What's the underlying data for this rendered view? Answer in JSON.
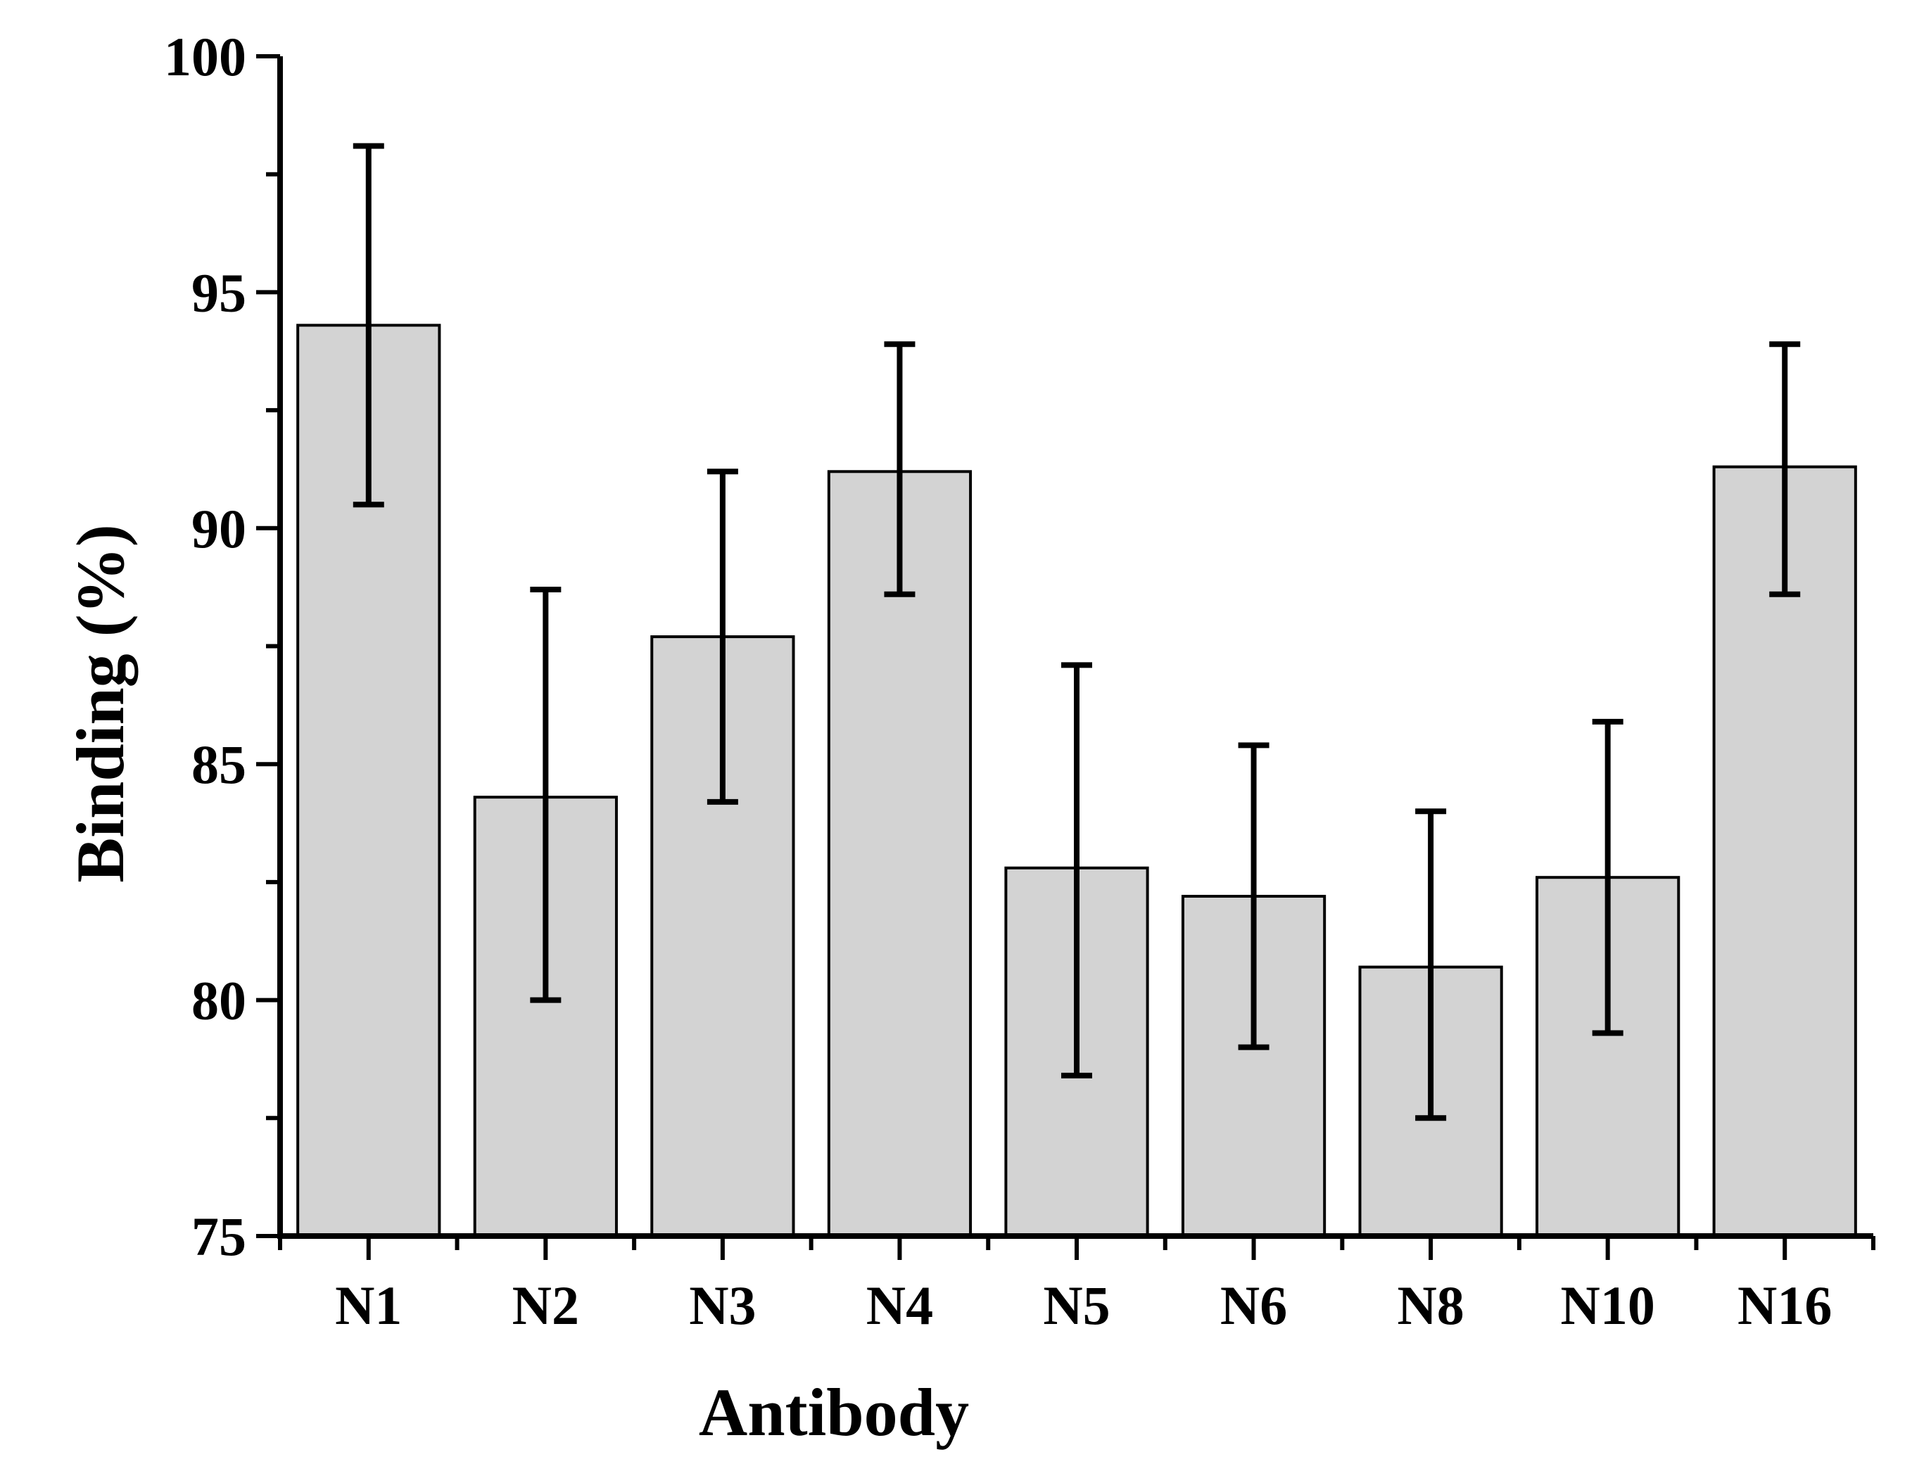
{
  "chart_data": {
    "type": "bar",
    "title": "",
    "xlabel": "Antibody",
    "ylabel": "Binding (%)",
    "categories": [
      "N1",
      "N2",
      "N3",
      "N4",
      "N5",
      "N6",
      "N8",
      "N10",
      "N16"
    ],
    "values": [
      94.3,
      84.3,
      87.7,
      91.2,
      82.8,
      82.2,
      80.7,
      82.6,
      91.3
    ],
    "error_low": [
      90.5,
      80.0,
      84.2,
      88.6,
      78.4,
      79.0,
      77.5,
      79.3,
      88.6
    ],
    "error_high": [
      98.1,
      88.7,
      91.2,
      93.9,
      87.1,
      85.4,
      84.0,
      85.9,
      93.9
    ],
    "ylim": [
      75,
      100
    ],
    "yticks": [
      75,
      80,
      85,
      90,
      95,
      100
    ],
    "ytick_labels": [
      "75",
      "80",
      "85",
      "90",
      "95",
      "100"
    ],
    "legend": "none",
    "grid": false,
    "colors": {
      "bar_fill": "#d3d3d3",
      "bar_edge": "#000000",
      "error_bar": "#000000",
      "axis": "#000000"
    }
  }
}
